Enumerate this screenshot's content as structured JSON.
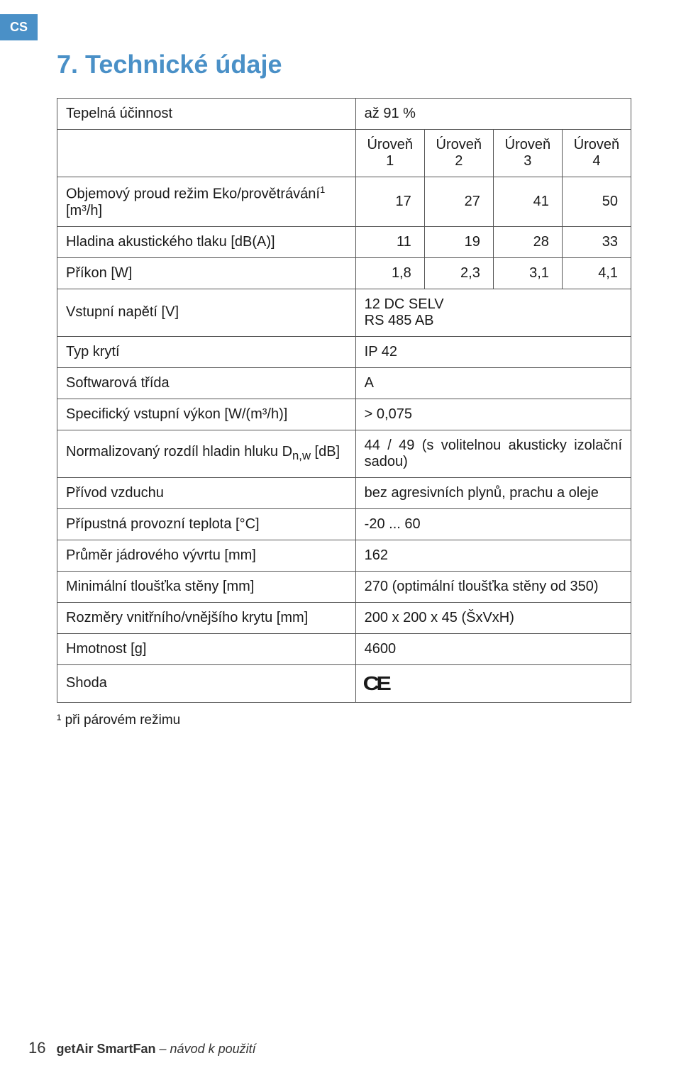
{
  "lang_tab": "CS",
  "section_title": "7. Technické údaje",
  "footnote": "¹ při párovém režimu",
  "footer": {
    "page": "16",
    "brand": "getAir SmartFan",
    "doc": " – návod k použití"
  },
  "ce_text": "CE",
  "table": {
    "rows": {
      "r1_label": "Tepelná účinnost",
      "r1_value": "až 91 %",
      "level_headers": [
        "Úroveň 1",
        "Úroveň 2",
        "Úroveň 3",
        "Úroveň 4"
      ],
      "r3_label_pre": "Objemový proud režim Eko/provětrávání",
      "r3_label_sup": "1",
      "r3_label_post": " [m³/h]",
      "r3_vals": [
        "17",
        "27",
        "41",
        "50"
      ],
      "r4_label": "Hladina akustického tlaku [dB(A)]",
      "r4_vals": [
        "11",
        "19",
        "28",
        "33"
      ],
      "r5_label": "Příkon [W]",
      "r5_vals": [
        "1,8",
        "2,3",
        "3,1",
        "4,1"
      ],
      "r6_label": "Vstupní napětí [V]",
      "r6_val_l1": "12 DC SELV",
      "r6_val_l2": "RS 485 AB",
      "r7_label": "Typ krytí",
      "r7_val": "IP 42",
      "r8_label": "Softwarová třída",
      "r8_val": "A",
      "r9_label": "Specifický vstupní výkon [W/(m³/h)]",
      "r9_val": "> 0,075",
      "r10_label_pre": "Normalizovaný rozdíl hladin hluku D",
      "r10_label_sub": "n,w",
      "r10_label_post": " [dB]",
      "r10_val": "44 / 49 (s volitelnou akusticky izolační sadou)",
      "r11_label": "Přívod vzduchu",
      "r11_val": "bez agresivních plynů, prachu a oleje",
      "r12_label": "Přípustná provozní teplota [°C]",
      "r12_val": "-20 ... 60",
      "r13_label": "Průměr jádrového vývrtu [mm]",
      "r13_val": "162",
      "r14_label": "Minimální tloušťka stěny [mm]",
      "r14_val": "270 (optimální tloušťka stěny od 350)",
      "r15_label": "Rozměry vnitřního/vnějšího krytu [mm]",
      "r15_val": "200 x 200 x 45 (ŠxVxH)",
      "r16_label": "Hmotnost [g]",
      "r16_val": "4600",
      "r17_label": "Shoda"
    }
  }
}
